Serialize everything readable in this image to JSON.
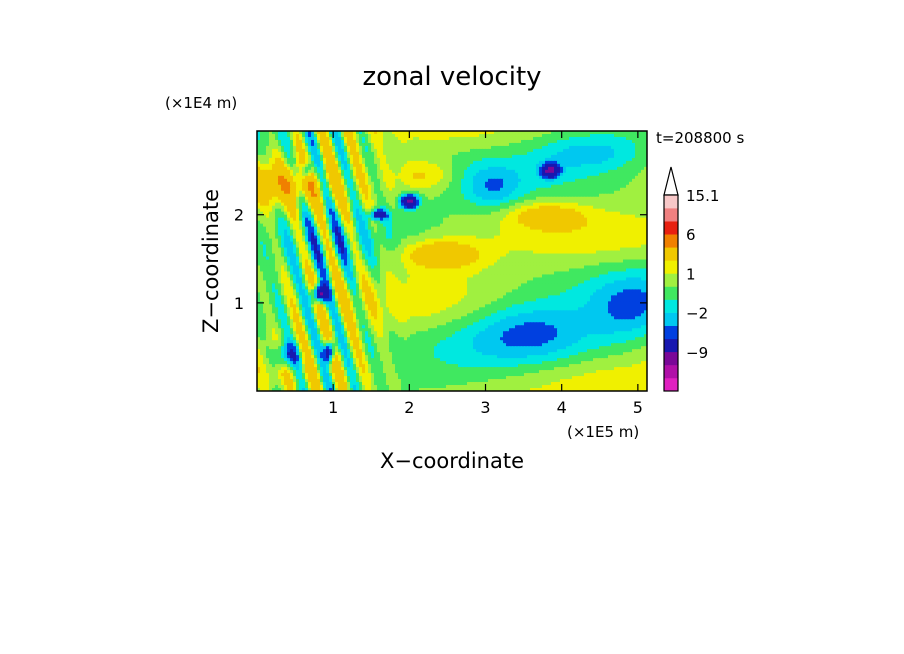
{
  "chart_data": {
    "type": "heatmap",
    "title": "zonal velocity",
    "xlabel": "X−coordinate",
    "ylabel": "Z−coordinate",
    "x_unit": "(×1E5 m)",
    "y_unit": "(×1E4 m)",
    "time_label": "t=208800 s",
    "xlim": [
      0,
      5.12
    ],
    "ylim": [
      0,
      2.95
    ],
    "xticks": [
      1,
      2,
      3,
      4,
      5
    ],
    "yticks": [
      1,
      2
    ],
    "colorbar": {
      "tick_labels": [
        {
          "label": "15.1",
          "level": 15.1
        },
        {
          "label": "6",
          "level": 6
        },
        {
          "label": "1",
          "level": 1
        },
        {
          "label": "−2",
          "level": -2
        },
        {
          "label": "−9",
          "level": -9
        }
      ],
      "levels": [
        -15,
        -12,
        -9,
        -6,
        -3,
        -2,
        -1,
        0,
        1,
        2,
        3,
        6,
        9,
        12,
        15.1
      ],
      "colors": [
        "#e020c0",
        "#b010a8",
        "#7a0898",
        "#1818b0",
        "#0040e0",
        "#00c8f0",
        "#00e8e0",
        "#40e860",
        "#a0f040",
        "#f0f000",
        "#f0c800",
        "#f08000",
        "#e82010",
        "#f08080",
        "#f8c8c8"
      ],
      "extend": "max"
    },
    "grid": false
  }
}
